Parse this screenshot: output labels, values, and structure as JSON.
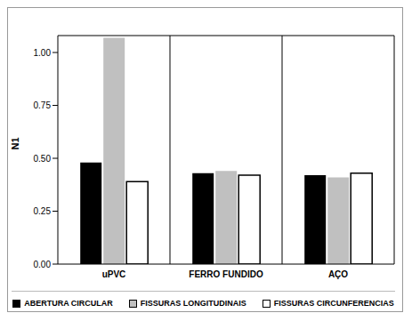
{
  "chart_data": {
    "type": "bar",
    "categories": [
      "uPVC",
      "FERRO FUNDIDO",
      "AÇO"
    ],
    "series": [
      {
        "name": "ABERTURA CIRCULAR",
        "color": "#000000",
        "values": [
          0.48,
          0.43,
          0.42
        ]
      },
      {
        "name": "FISSURAS LONGITUDINAIS",
        "color": "#c0c0c0",
        "values": [
          1.07,
          0.44,
          0.41
        ]
      },
      {
        "name": "FISSURAS CIRCUNFERENCIAS",
        "color": "#ffffff",
        "values": [
          0.39,
          0.42,
          0.43
        ]
      }
    ],
    "ylabel": "N1",
    "ylim": [
      0,
      1.08
    ],
    "yticks": [
      {
        "value": 0,
        "label": "0.00"
      },
      {
        "value": 0.25,
        "label": "0.25"
      },
      {
        "value": 0.5,
        "label": "0.50"
      },
      {
        "value": 0.75,
        "label": "0.75"
      },
      {
        "value": 1,
        "label": "1.00"
      }
    ],
    "grid": true,
    "legend": "bottom"
  }
}
